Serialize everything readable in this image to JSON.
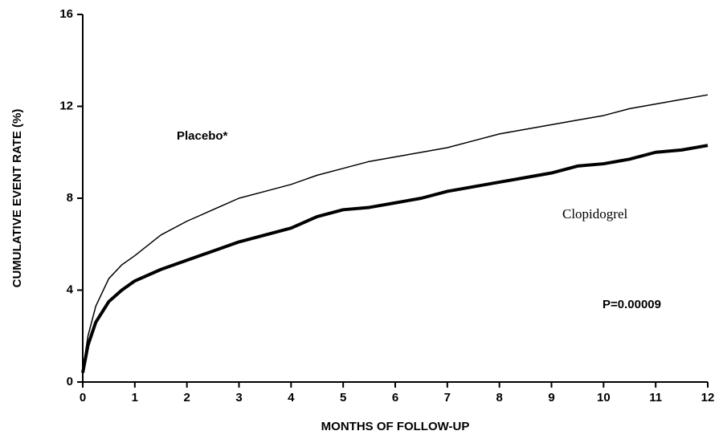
{
  "chart_data": {
    "type": "line",
    "xlabel": "MONTHS OF FOLLOW-UP",
    "ylabel": "CUMULATIVE EVENT RATE (%)",
    "x": [
      0,
      0.1,
      0.25,
      0.5,
      0.75,
      1,
      1.5,
      2,
      2.5,
      3,
      3.5,
      4,
      4.5,
      5,
      5.5,
      6,
      6.5,
      7,
      7.5,
      8,
      8.5,
      9,
      9.5,
      10,
      10.5,
      11,
      11.5,
      12
    ],
    "series": [
      {
        "name": "Placebo*",
        "color": "#000000",
        "line_width": 1.5,
        "values": [
          0.5,
          2.0,
          3.3,
          4.5,
          5.1,
          5.5,
          6.4,
          7.0,
          7.5,
          8.0,
          8.3,
          8.6,
          9.0,
          9.3,
          9.6,
          9.8,
          10.0,
          10.2,
          10.5,
          10.8,
          11.0,
          11.2,
          11.4,
          11.6,
          11.9,
          12.1,
          12.3,
          12.5
        ]
      },
      {
        "name": "Clopidogrel",
        "color": "#000000",
        "line_width": 4,
        "values": [
          0.4,
          1.6,
          2.6,
          3.5,
          4.0,
          4.4,
          4.9,
          5.3,
          5.7,
          6.1,
          6.4,
          6.7,
          7.2,
          7.5,
          7.6,
          7.8,
          8.0,
          8.3,
          8.5,
          8.7,
          8.9,
          9.1,
          9.4,
          9.5,
          9.7,
          10.0,
          10.1,
          10.3
        ]
      }
    ],
    "annotations": [
      "P=0.00009"
    ],
    "xlim": [
      0,
      12
    ],
    "xticks": [
      0,
      1,
      2,
      3,
      4,
      5,
      6,
      7,
      8,
      9,
      10,
      11,
      12
    ],
    "ylim": [
      0,
      16
    ],
    "yticks": [
      0,
      4,
      8,
      12,
      16
    ],
    "grid": false
  }
}
